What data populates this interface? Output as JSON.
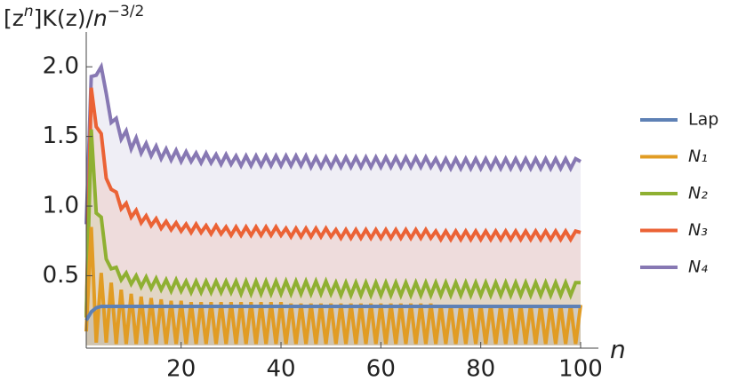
{
  "chart_data": {
    "type": "line",
    "y_label_parts": [
      "[z",
      "n",
      "]K(z)/",
      "n",
      "−3/2"
    ],
    "x_label": "n",
    "x": [
      1,
      2,
      3,
      4,
      5,
      6,
      7,
      8,
      9,
      10,
      11,
      12,
      13,
      14,
      15,
      16,
      17,
      18,
      19,
      20,
      21,
      22,
      23,
      24,
      25,
      26,
      27,
      28,
      29,
      30,
      31,
      32,
      33,
      34,
      35,
      36,
      37,
      38,
      39,
      40,
      41,
      42,
      43,
      44,
      45,
      46,
      47,
      48,
      49,
      50,
      51,
      52,
      53,
      54,
      55,
      56,
      57,
      58,
      59,
      60,
      61,
      62,
      63,
      64,
      65,
      66,
      67,
      68,
      69,
      70,
      71,
      72,
      73,
      74,
      75,
      76,
      77,
      78,
      79,
      80,
      81,
      82,
      83,
      84,
      85,
      86,
      87,
      88,
      89,
      90,
      91,
      92,
      93,
      94,
      95,
      96,
      97,
      98,
      99,
      100
    ],
    "xlim": [
      1,
      100
    ],
    "xticks": [
      20,
      40,
      60,
      80,
      100
    ],
    "ylim": [
      -0.02,
      2.25
    ],
    "yticks": [
      0.5,
      {
        "value": 1.0,
        "label": "1.0"
      },
      1.5,
      {
        "value": 2.0,
        "label": "2.0"
      }
    ],
    "fill_to_axis": true,
    "legend": "right",
    "series": [
      {
        "name": "N₄",
        "color": "#8778b3",
        "values": [
          0.87,
          1.93,
          1.94,
          2.0,
          1.81,
          1.6,
          1.63,
          1.48,
          1.54,
          1.41,
          1.49,
          1.38,
          1.45,
          1.36,
          1.43,
          1.34,
          1.41,
          1.33,
          1.4,
          1.32,
          1.39,
          1.32,
          1.38,
          1.31,
          1.38,
          1.31,
          1.37,
          1.3,
          1.37,
          1.3,
          1.36,
          1.29,
          1.36,
          1.29,
          1.36,
          1.29,
          1.36,
          1.29,
          1.36,
          1.29,
          1.36,
          1.29,
          1.36,
          1.29,
          1.36,
          1.28,
          1.35,
          1.28,
          1.35,
          1.28,
          1.35,
          1.28,
          1.35,
          1.28,
          1.35,
          1.28,
          1.35,
          1.28,
          1.35,
          1.28,
          1.35,
          1.28,
          1.35,
          1.28,
          1.35,
          1.28,
          1.35,
          1.28,
          1.35,
          1.28,
          1.34,
          1.27,
          1.34,
          1.27,
          1.34,
          1.27,
          1.34,
          1.27,
          1.34,
          1.27,
          1.34,
          1.27,
          1.34,
          1.27,
          1.34,
          1.27,
          1.34,
          1.27,
          1.34,
          1.27,
          1.34,
          1.27,
          1.34,
          1.27,
          1.34,
          1.27,
          1.34,
          1.27,
          1.34,
          1.32
        ]
      },
      {
        "name": "N₃",
        "color": "#eb6235",
        "values": [
          0.2,
          1.85,
          1.57,
          1.52,
          1.2,
          1.12,
          1.1,
          0.98,
          1.02,
          0.92,
          0.97,
          0.88,
          0.93,
          0.86,
          0.91,
          0.84,
          0.89,
          0.83,
          0.88,
          0.82,
          0.87,
          0.81,
          0.87,
          0.81,
          0.86,
          0.8,
          0.86,
          0.8,
          0.85,
          0.79,
          0.85,
          0.79,
          0.85,
          0.79,
          0.85,
          0.79,
          0.85,
          0.79,
          0.85,
          0.79,
          0.84,
          0.78,
          0.84,
          0.78,
          0.84,
          0.78,
          0.84,
          0.78,
          0.84,
          0.78,
          0.83,
          0.77,
          0.83,
          0.77,
          0.83,
          0.77,
          0.83,
          0.77,
          0.83,
          0.77,
          0.83,
          0.77,
          0.83,
          0.77,
          0.83,
          0.77,
          0.83,
          0.77,
          0.83,
          0.77,
          0.82,
          0.76,
          0.82,
          0.76,
          0.82,
          0.76,
          0.82,
          0.76,
          0.82,
          0.76,
          0.82,
          0.76,
          0.82,
          0.76,
          0.82,
          0.76,
          0.82,
          0.76,
          0.82,
          0.76,
          0.82,
          0.76,
          0.82,
          0.76,
          0.82,
          0.76,
          0.82,
          0.76,
          0.82,
          0.81
        ]
      },
      {
        "name": "N₂",
        "color": "#8fb032",
        "values": [
          0.2,
          1.55,
          0.95,
          0.92,
          0.62,
          0.55,
          0.56,
          0.47,
          0.52,
          0.44,
          0.5,
          0.42,
          0.49,
          0.41,
          0.48,
          0.4,
          0.47,
          0.39,
          0.47,
          0.39,
          0.46,
          0.38,
          0.46,
          0.38,
          0.46,
          0.38,
          0.46,
          0.38,
          0.46,
          0.38,
          0.46,
          0.37,
          0.46,
          0.37,
          0.46,
          0.37,
          0.46,
          0.37,
          0.46,
          0.37,
          0.46,
          0.37,
          0.46,
          0.37,
          0.46,
          0.37,
          0.46,
          0.37,
          0.46,
          0.37,
          0.45,
          0.36,
          0.45,
          0.36,
          0.45,
          0.36,
          0.45,
          0.36,
          0.45,
          0.36,
          0.45,
          0.36,
          0.45,
          0.36,
          0.45,
          0.36,
          0.45,
          0.36,
          0.45,
          0.36,
          0.45,
          0.36,
          0.45,
          0.36,
          0.45,
          0.36,
          0.45,
          0.36,
          0.45,
          0.36,
          0.45,
          0.36,
          0.45,
          0.36,
          0.45,
          0.36,
          0.45,
          0.36,
          0.45,
          0.36,
          0.45,
          0.36,
          0.45,
          0.36,
          0.45,
          0.36,
          0.45,
          0.36,
          0.45,
          0.45
        ]
      },
      {
        "name": "N₁",
        "color": "#e19c24",
        "values": [
          0.1,
          0.85,
          0.02,
          0.52,
          0.02,
          0.45,
          0.01,
          0.4,
          0.01,
          0.37,
          0.01,
          0.35,
          0.01,
          0.34,
          0.01,
          0.33,
          0.01,
          0.32,
          0.01,
          0.32,
          0.01,
          0.31,
          0.01,
          0.31,
          0.01,
          0.31,
          0.01,
          0.31,
          0.01,
          0.31,
          0.01,
          0.31,
          0.01,
          0.31,
          0.01,
          0.31,
          0.01,
          0.31,
          0.01,
          0.31,
          0.01,
          0.3,
          0.01,
          0.3,
          0.01,
          0.3,
          0.01,
          0.3,
          0.01,
          0.3,
          0.01,
          0.3,
          0.01,
          0.3,
          0.01,
          0.3,
          0.01,
          0.3,
          0.01,
          0.3,
          0.01,
          0.3,
          0.01,
          0.3,
          0.01,
          0.3,
          0.01,
          0.3,
          0.01,
          0.3,
          0.01,
          0.29,
          0.01,
          0.29,
          0.01,
          0.29,
          0.01,
          0.29,
          0.01,
          0.29,
          0.01,
          0.29,
          0.01,
          0.29,
          0.01,
          0.29,
          0.01,
          0.29,
          0.01,
          0.29,
          0.01,
          0.29,
          0.01,
          0.29,
          0.01,
          0.29,
          0.01,
          0.29,
          0.01,
          0.29
        ]
      },
      {
        "name": "Lap",
        "color": "#5e81b5",
        "values": [
          0.18,
          0.24,
          0.27,
          0.28,
          0.28,
          0.28,
          0.28,
          0.28,
          0.28,
          0.28,
          0.28,
          0.28,
          0.28,
          0.28,
          0.28,
          0.28,
          0.28,
          0.28,
          0.28,
          0.28,
          0.28,
          0.28,
          0.28,
          0.28,
          0.28,
          0.28,
          0.28,
          0.28,
          0.28,
          0.28,
          0.28,
          0.28,
          0.28,
          0.28,
          0.28,
          0.28,
          0.28,
          0.28,
          0.28,
          0.28,
          0.28,
          0.28,
          0.28,
          0.28,
          0.28,
          0.28,
          0.28,
          0.28,
          0.28,
          0.28,
          0.28,
          0.28,
          0.28,
          0.28,
          0.28,
          0.28,
          0.28,
          0.28,
          0.28,
          0.28,
          0.28,
          0.28,
          0.28,
          0.28,
          0.28,
          0.28,
          0.28,
          0.28,
          0.28,
          0.28,
          0.28,
          0.28,
          0.28,
          0.28,
          0.28,
          0.28,
          0.28,
          0.28,
          0.28,
          0.28,
          0.28,
          0.28,
          0.28,
          0.28,
          0.28,
          0.28,
          0.28,
          0.28,
          0.28,
          0.28,
          0.28,
          0.28,
          0.28,
          0.28,
          0.28,
          0.28,
          0.28,
          0.28,
          0.28,
          0.28
        ]
      }
    ]
  }
}
